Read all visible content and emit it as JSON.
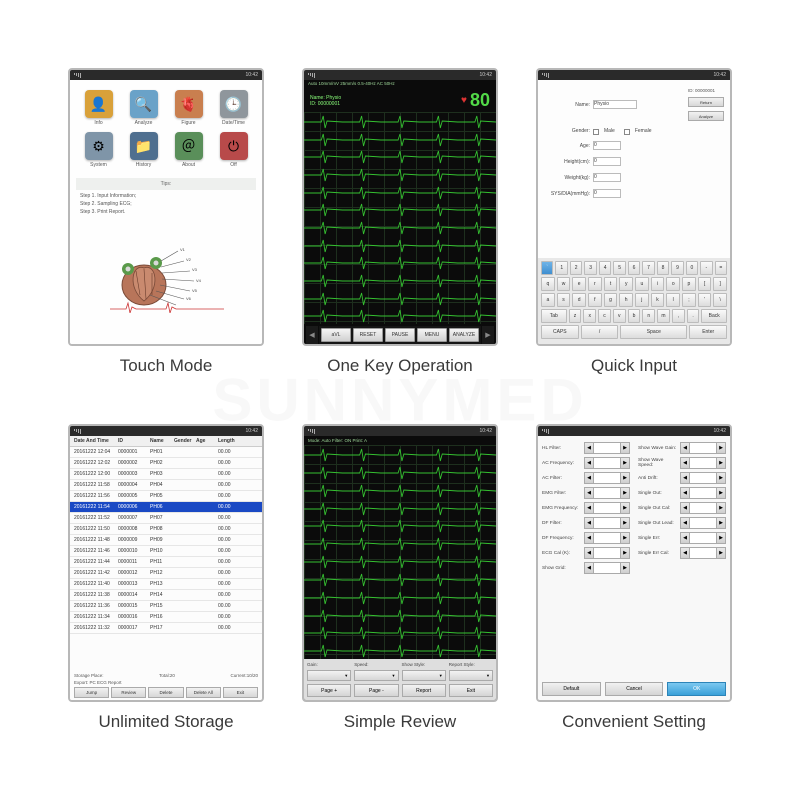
{
  "watermark": "SUNNYMED",
  "captions": {
    "p1": "Touch Mode",
    "p2": "One Key Operation",
    "p3": "Quick Input",
    "p4": "Unlimited Storage",
    "p5": "Simple Review",
    "p6": "Convenient Setting"
  },
  "statusbar": {
    "time": "10:42"
  },
  "panel1": {
    "icons": [
      {
        "name": "Info",
        "color": "#d9a13a",
        "glyph": "👤"
      },
      {
        "name": "Analyze",
        "color": "#6aa2c8",
        "glyph": "🔍"
      },
      {
        "name": "Figure",
        "color": "#c97f4f",
        "glyph": "🫀"
      },
      {
        "name": "Date/Time",
        "color": "#8f969c",
        "glyph": "🕒"
      },
      {
        "name": "System",
        "color": "#7f95a8",
        "glyph": "⚙"
      },
      {
        "name": "History",
        "color": "#4f6f8f",
        "glyph": "📁"
      },
      {
        "name": "About",
        "color": "#5a8f5a",
        "glyph": "＠"
      },
      {
        "name": "Off",
        "color": "#b84a4a",
        "glyph": "⏻"
      }
    ],
    "tips_label": "Tips:",
    "steps": [
      "Step 1. Input Information;",
      "Step 2. Sampling ECG;",
      "Step 3. Print Report."
    ]
  },
  "panel2": {
    "topbar": "Auto  10mm/mV  25mm/s  0.5-40Hz AC 50Hz",
    "patient_label": "Name: Physio",
    "patient_id": "ID: 00000001",
    "heart_rate": "80",
    "ecg_color": "#35c231",
    "grid_color": "#1e2f1e",
    "buttons": [
      "aVL",
      "RESET",
      "PAUSE",
      "MENU",
      "ANALYZE"
    ]
  },
  "panel3": {
    "id_value": "ID: 00000001",
    "fields": {
      "name_label": "Name:",
      "name_value": "Physio",
      "gender_label": "Gender:",
      "gender_male": "Male",
      "gender_female": "Female",
      "age_label": "Age:",
      "age_value": "0",
      "height_label": "Height(cm):",
      "height_value": "0",
      "weight_label": "Weight(kg):",
      "weight_value": "0",
      "bp_label": "SYS/DIA(mmHg):",
      "bp_value": "0"
    },
    "side_buttons": {
      "return": "Return",
      "analyze": "Analyze"
    },
    "keyboard": {
      "row1": [
        "`",
        "1",
        "2",
        "3",
        "4",
        "5",
        "6",
        "7",
        "8",
        "9",
        "0",
        "-",
        "="
      ],
      "row2": [
        "q",
        "w",
        "e",
        "r",
        "t",
        "y",
        "u",
        "i",
        "o",
        "p",
        "[",
        "]"
      ],
      "row3": [
        "a",
        "s",
        "d",
        "f",
        "g",
        "h",
        "j",
        "k",
        "l",
        ";",
        "'",
        "\\"
      ],
      "row4": [
        "Tab",
        "z",
        "x",
        "c",
        "v",
        "b",
        "n",
        "m",
        ",",
        ".",
        "Back"
      ],
      "row5": [
        "CAPS",
        "/",
        "Space",
        "Enter"
      ]
    }
  },
  "panel4": {
    "columns": [
      "Date And Time",
      "ID",
      "Name",
      "Gender",
      "Age",
      "Length"
    ],
    "rows": [
      [
        "20161222 12:04",
        "0000001",
        "PH01",
        "",
        "",
        "00.00"
      ],
      [
        "20161222 12:02",
        "0000002",
        "PH02",
        "",
        "",
        "00.00"
      ],
      [
        "20161222 12:00",
        "0000003",
        "PH03",
        "",
        "",
        "00.00"
      ],
      [
        "20161222 11:58",
        "0000004",
        "PH04",
        "",
        "",
        "00.00"
      ],
      [
        "20161222 11:56",
        "0000005",
        "PH05",
        "",
        "",
        "00.00"
      ],
      [
        "20161222 11:54",
        "0000006",
        "PH06",
        "",
        "",
        "00.00"
      ],
      [
        "20161222 11:52",
        "0000007",
        "PH07",
        "",
        "",
        "00.00"
      ],
      [
        "20161222 11:50",
        "0000008",
        "PH08",
        "",
        "",
        "00.00"
      ],
      [
        "20161222 11:48",
        "0000009",
        "PH09",
        "",
        "",
        "00.00"
      ],
      [
        "20161222 11:46",
        "0000010",
        "PH10",
        "",
        "",
        "00.00"
      ],
      [
        "20161222 11:44",
        "0000011",
        "PH11",
        "",
        "",
        "00.00"
      ],
      [
        "20161222 11:42",
        "0000012",
        "PH12",
        "",
        "",
        "00.00"
      ],
      [
        "20161222 11:40",
        "0000013",
        "PH13",
        "",
        "",
        "00.00"
      ],
      [
        "20161222 11:38",
        "0000014",
        "PH14",
        "",
        "",
        "00.00"
      ],
      [
        "20161222 11:36",
        "0000015",
        "PH15",
        "",
        "",
        "00.00"
      ],
      [
        "20161222 11:34",
        "0000016",
        "PH16",
        "",
        "",
        "00.00"
      ],
      [
        "20161222 11:32",
        "0000017",
        "PH17",
        "",
        "",
        "00.00"
      ]
    ],
    "selected_index": 5,
    "storage_label": "Storage Place:",
    "export_label": "Export: PC ECG Report",
    "total_label": "Total:20",
    "current_label": "Current:10/20",
    "buttons": [
      "Jump",
      "Review",
      "Delete",
      "Delete All",
      "Exit"
    ]
  },
  "panel5": {
    "topbar": "Mode: Auto  Filter: ON  Print: A",
    "labels": [
      "Gain:",
      "Speed:",
      "Show Style:",
      "Report Style:"
    ],
    "buttons": [
      "Page +",
      "Page -",
      "Report",
      "Exit"
    ]
  },
  "panel6": {
    "settings_left": [
      "HL Filter:",
      "AC Frequency:",
      "AC Filter:",
      "EMG Filter:",
      "EMG Frequency:",
      "DF Filter:",
      "DF Frequency:",
      "ECG Cal (K):",
      "Show Grid:"
    ],
    "settings_right": [
      "Show Wave Gain:",
      "Show Wave Speed:",
      "Anti Drift:",
      "Single Out:",
      "Single Out Cal:",
      "Single Out Lead:",
      "Single Err:",
      "Single Err Cal:"
    ],
    "footer": [
      "Default",
      "Cancel",
      "OK"
    ]
  }
}
